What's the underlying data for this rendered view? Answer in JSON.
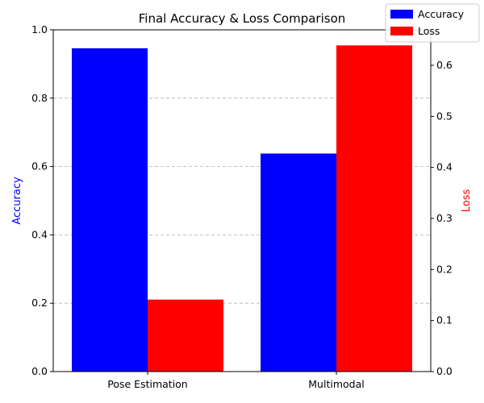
{
  "chart_data": {
    "type": "bar",
    "title": "Final Accuracy & Loss Comparison",
    "categories": [
      "Pose Estimation",
      "Multimodal"
    ],
    "series": [
      {
        "name": "Accuracy",
        "axis": "left",
        "color": "#0000ff",
        "values": [
          0.946,
          0.638
        ]
      },
      {
        "name": "Loss",
        "axis": "right",
        "color": "#ff0000",
        "values": [
          0.141,
          0.639
        ]
      }
    ],
    "y_left": {
      "label": "Accuracy",
      "label_color": "#0000ff",
      "lim": [
        0,
        1.0
      ],
      "ticks": [
        0.0,
        0.2,
        0.4,
        0.6,
        0.8,
        1.0
      ],
      "tick_labels": [
        "0.0",
        "0.2",
        "0.4",
        "0.6",
        "0.8",
        "1.0"
      ]
    },
    "y_right": {
      "label": "Loss",
      "label_color": "#ff0000",
      "lim": [
        0,
        0.6695
      ],
      "ticks": [
        0.0,
        0.1,
        0.2,
        0.3,
        0.4,
        0.5,
        0.6
      ],
      "tick_labels": [
        "0.0",
        "0.1",
        "0.2",
        "0.3",
        "0.4",
        "0.5",
        "0.6"
      ]
    },
    "grid": "y-dashed",
    "legend_position": "top-right"
  }
}
